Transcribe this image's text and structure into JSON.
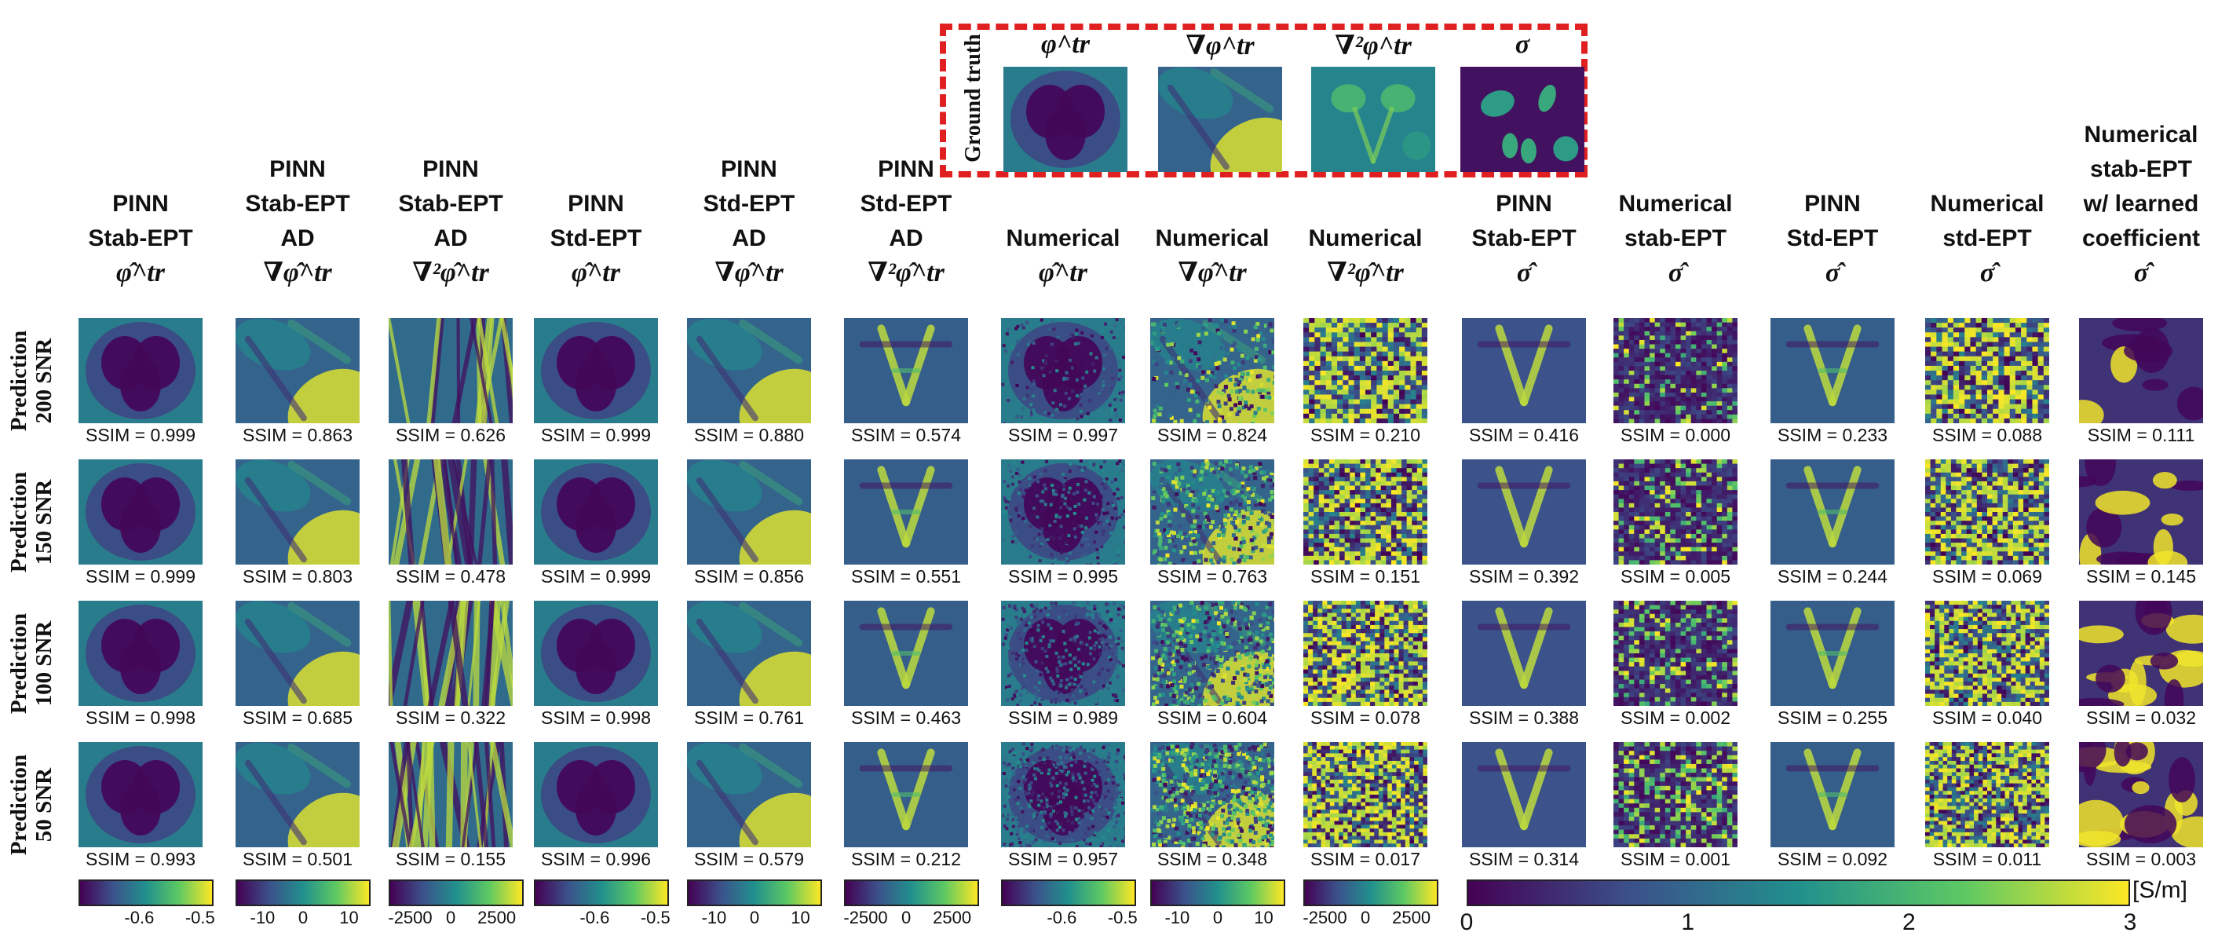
{
  "ground_truth": {
    "label": "Ground truth",
    "panels": [
      {
        "title": "φ^tr",
        "pattern": "heart"
      },
      {
        "title": "∇φ^tr",
        "pattern": "grad"
      },
      {
        "title": "∇²φ^tr",
        "pattern": "lap"
      },
      {
        "title": "σ",
        "pattern": "sigma"
      }
    ]
  },
  "columns": [
    {
      "title": "PINN\nStab-EPT",
      "symbol": "φ̂^tr",
      "pattern": "heart"
    },
    {
      "title": "PINN\nStab-EPT\nAD",
      "symbol": "∇φ̂^tr",
      "pattern": "grad"
    },
    {
      "title": "PINN\nStab-EPT\nAD",
      "symbol": "∇²φ̂^tr",
      "pattern": "stripes"
    },
    {
      "title": "PINN\nStd-EPT",
      "symbol": "φ̂^tr",
      "pattern": "heart"
    },
    {
      "title": "PINN\nStd-EPT\nAD",
      "symbol": "∇φ̂^tr",
      "pattern": "grad"
    },
    {
      "title": "PINN\nStd-EPT\nAD",
      "symbol": "∇²φ̂^tr",
      "pattern": "vshape"
    },
    {
      "title": "Numerical",
      "symbol": "φ̂^tr",
      "pattern": "heart-noise"
    },
    {
      "title": "Numerical",
      "symbol": "∇φ̂^tr",
      "pattern": "grad-noise"
    },
    {
      "title": "Numerical",
      "symbol": "∇²φ̂^tr",
      "pattern": "noise"
    },
    {
      "title": "PINN\nStab-EPT",
      "symbol": "σ̂",
      "pattern": "vshape-soft"
    },
    {
      "title": "Numerical\nstab-EPT",
      "symbol": "σ̂",
      "pattern": "sparse-noise"
    },
    {
      "title": "PINN\nStd-EPT",
      "symbol": "σ̂",
      "pattern": "vshape"
    },
    {
      "title": "Numerical\nstd-EPT",
      "symbol": "σ̂",
      "pattern": "noise"
    },
    {
      "title": "Numerical\nstab-EPT\nw/ learned\ncoefficient",
      "symbol": "σ̂",
      "pattern": "blob"
    }
  ],
  "rows": [
    {
      "label": "Prediction\n200 SNR",
      "ssim": [
        "SSIM = 0.999",
        "SSIM = 0.863",
        "SSIM = 0.626",
        "SSIM = 0.999",
        "SSIM = 0.880",
        "SSIM = 0.574",
        "SSIM = 0.997",
        "SSIM = 0.824",
        "SSIM = 0.210",
        "SSIM = 0.416",
        "SSIM = 0.000",
        "SSIM = 0.233",
        "SSIM = 0.088",
        "SSIM = 0.111"
      ]
    },
    {
      "label": "Prediction\n150 SNR",
      "ssim": [
        "SSIM = 0.999",
        "SSIM = 0.803",
        "SSIM = 0.478",
        "SSIM = 0.999",
        "SSIM = 0.856",
        "SSIM = 0.551",
        "SSIM = 0.995",
        "SSIM = 0.763",
        "SSIM = 0.151",
        "SSIM = 0.392",
        "SSIM = 0.005",
        "SSIM = 0.244",
        "SSIM = 0.069",
        "SSIM = 0.145"
      ]
    },
    {
      "label": "Prediction\n100 SNR",
      "ssim": [
        "SSIM = 0.998",
        "SSIM = 0.685",
        "SSIM = 0.322",
        "SSIM = 0.998",
        "SSIM = 0.761",
        "SSIM = 0.463",
        "SSIM = 0.989",
        "SSIM = 0.604",
        "SSIM = 0.078",
        "SSIM = 0.388",
        "SSIM = 0.002",
        "SSIM = 0.255",
        "SSIM = 0.040",
        "SSIM = 0.032"
      ]
    },
    {
      "label": "Prediction\n50 SNR",
      "ssim": [
        "SSIM = 0.993",
        "SSIM = 0.501",
        "SSIM = 0.155",
        "SSIM = 0.996",
        "SSIM = 0.579",
        "SSIM = 0.212",
        "SSIM = 0.957",
        "SSIM = 0.348",
        "SSIM = 0.017",
        "SSIM = 0.314",
        "SSIM = 0.001",
        "SSIM = 0.092",
        "SSIM = 0.011",
        "SSIM = 0.003"
      ]
    }
  ],
  "colorbars": [
    {
      "ticks": [
        "-0.6",
        "-0.5"
      ],
      "positions": [
        0.45,
        0.9
      ]
    },
    {
      "ticks": [
        "-10",
        "0",
        "10"
      ],
      "positions": [
        0.2,
        0.5,
        0.84
      ]
    },
    {
      "ticks": [
        "-2500",
        "0",
        "2500"
      ],
      "positions": [
        0.16,
        0.46,
        0.8
      ]
    },
    {
      "ticks": [
        "-0.6",
        "-0.5"
      ],
      "positions": [
        0.45,
        0.9
      ]
    },
    {
      "ticks": [
        "-10",
        "0",
        "10"
      ],
      "positions": [
        0.2,
        0.5,
        0.84
      ]
    },
    {
      "ticks": [
        "-2500",
        "0",
        "2500"
      ],
      "positions": [
        0.16,
        0.46,
        0.8
      ]
    },
    {
      "ticks": [
        "-0.6",
        "-0.5"
      ],
      "positions": [
        0.45,
        0.9
      ]
    },
    {
      "ticks": [
        "-10",
        "0",
        "10"
      ],
      "positions": [
        0.2,
        0.5,
        0.84
      ]
    },
    {
      "ticks": [
        "-2500",
        "0",
        "2500"
      ],
      "positions": [
        0.16,
        0.46,
        0.8
      ]
    }
  ],
  "sigma_colorbar": {
    "ticks": [
      "0",
      "1",
      "2",
      "3"
    ],
    "values": [
      0,
      1,
      2,
      3
    ],
    "max": 3,
    "unit": "[S/m]"
  },
  "colormap": [
    "#440154",
    "#3b528b",
    "#21908d",
    "#5dc963",
    "#fde725"
  ]
}
